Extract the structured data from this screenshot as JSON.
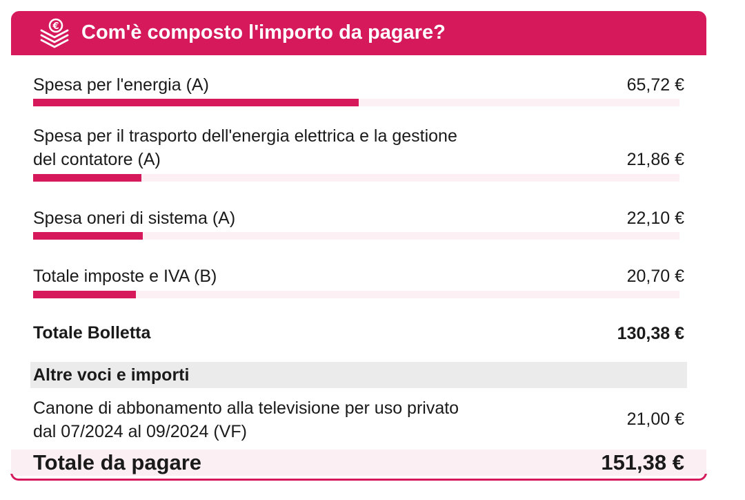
{
  "header": {
    "icon": "stacked-coins-euro-icon",
    "title": "Com'è composto l'importo da pagare?"
  },
  "colors": {
    "accent": "#d5195a",
    "bar_track": "#fcf0f4",
    "section_band": "#ebebeb",
    "total_band": "#fceff4"
  },
  "rows": [
    {
      "label": "Spesa per l'energia (A)",
      "value": "65,72 €",
      "share": 0.504
    },
    {
      "label_line1": "Spesa per il trasporto dell'energia elettrica e la gestione",
      "label_line2": "del contatore (A)",
      "value": "21,86 €",
      "share": 0.168
    },
    {
      "label": "Spesa oneri di sistema (A)",
      "value": "22,10 €",
      "share": 0.17
    },
    {
      "label": "Totale imposte e IVA (B)",
      "value": "20,70 €",
      "share": 0.159
    }
  ],
  "bill_total": {
    "label": "Totale Bolletta",
    "value": "130,38 €"
  },
  "other": {
    "title": "Altre voci e importi",
    "item": {
      "label_line1": "Canone di abbonamento alla televisione per uso privato",
      "label_line2": "dal 07/2024 al 09/2024 (VF)",
      "value": "21,00 €"
    }
  },
  "grand_total": {
    "label": "Totale da pagare",
    "value": "151,38 €"
  }
}
